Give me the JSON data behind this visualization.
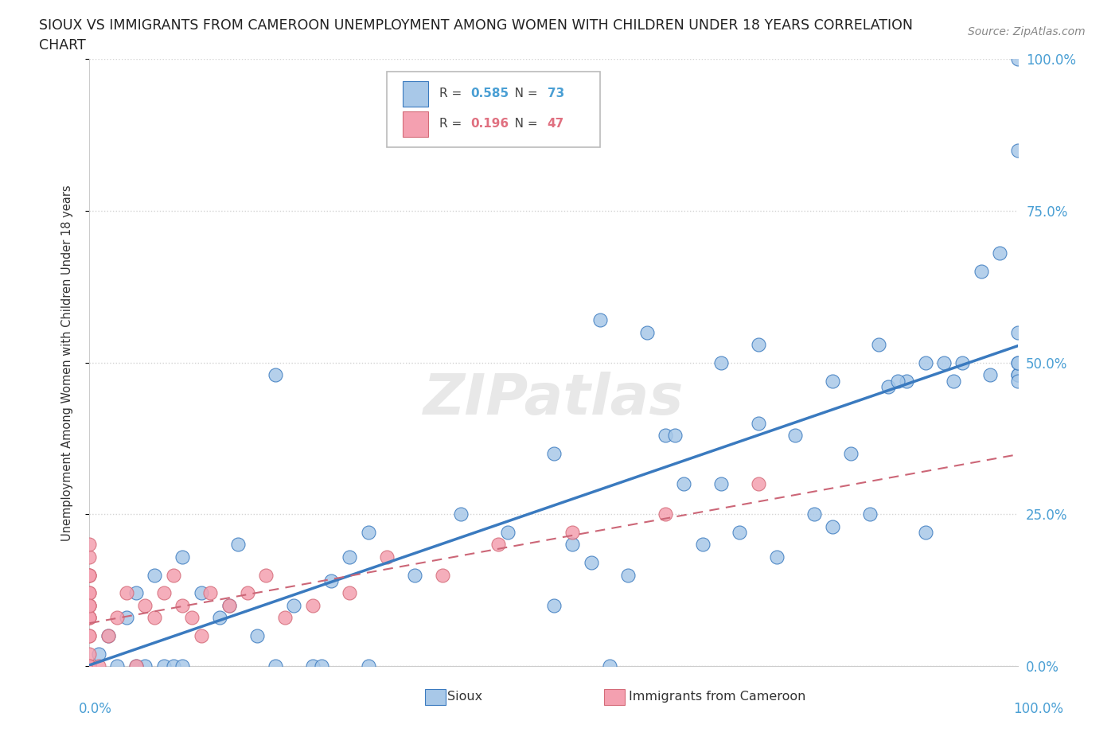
{
  "title_line1": "SIOUX VS IMMIGRANTS FROM CAMEROON UNEMPLOYMENT AMONG WOMEN WITH CHILDREN UNDER 18 YEARS CORRELATION",
  "title_line2": "CHART",
  "source": "Source: ZipAtlas.com",
  "ylabel": "Unemployment Among Women with Children Under 18 years",
  "legend_label1": "Sioux",
  "legend_label2": "Immigrants from Cameroon",
  "r1": "0.585",
  "n1": "73",
  "r2": "0.196",
  "n2": "47",
  "color_sioux": "#a8c8e8",
  "color_cameroon": "#f4a0b0",
  "edge_color_sioux": "#3a7abf",
  "edge_color_cameroon": "#d46a78",
  "line_color_sioux": "#3a7abf",
  "line_color_cameroon": "#cc6677",
  "axis_label_color": "#4a9fd4",
  "watermark": "ZIPatlas",
  "sioux_x": [
    1,
    2,
    3,
    4,
    5,
    6,
    7,
    8,
    9,
    10,
    12,
    14,
    16,
    18,
    20,
    22,
    24,
    26,
    28,
    30,
    5,
    10,
    15,
    20,
    25,
    30,
    35,
    40,
    45,
    50,
    50,
    52,
    54,
    56,
    58,
    60,
    62,
    64,
    66,
    68,
    70,
    72,
    74,
    76,
    78,
    80,
    82,
    84,
    86,
    88,
    90,
    92,
    94,
    96,
    98,
    100,
    100,
    100,
    100,
    100,
    55,
    63,
    68,
    72,
    80,
    85,
    87,
    90,
    93,
    97,
    100,
    100,
    100
  ],
  "sioux_y": [
    2,
    5,
    0,
    8,
    12,
    0,
    15,
    0,
    0,
    18,
    12,
    8,
    20,
    5,
    0,
    10,
    0,
    14,
    18,
    22,
    0,
    0,
    10,
    48,
    0,
    0,
    15,
    25,
    22,
    10,
    35,
    20,
    17,
    0,
    15,
    55,
    38,
    30,
    20,
    30,
    22,
    40,
    18,
    38,
    25,
    23,
    35,
    25,
    46,
    47,
    50,
    50,
    50,
    65,
    68,
    100,
    85,
    48,
    55,
    48,
    57,
    38,
    50,
    53,
    47,
    53,
    47,
    22,
    47,
    48,
    47,
    50,
    50
  ],
  "cameroon_x": [
    0,
    0,
    0,
    0,
    0,
    0,
    0,
    0,
    0,
    0,
    0,
    0,
    0,
    0,
    0,
    0,
    0,
    0,
    0,
    0,
    0,
    0,
    1,
    2,
    3,
    4,
    5,
    6,
    7,
    8,
    9,
    10,
    11,
    12,
    13,
    15,
    17,
    19,
    21,
    24,
    28,
    32,
    38,
    44,
    52,
    62,
    72
  ],
  "cameroon_y": [
    0,
    0,
    0,
    0,
    0,
    2,
    5,
    8,
    10,
    12,
    15,
    18,
    8,
    10,
    15,
    12,
    20,
    5,
    8,
    10,
    15,
    0,
    0,
    5,
    8,
    12,
    0,
    10,
    8,
    12,
    15,
    10,
    8,
    5,
    12,
    10,
    12,
    15,
    8,
    10,
    12,
    18,
    15,
    20,
    22,
    25,
    30
  ]
}
